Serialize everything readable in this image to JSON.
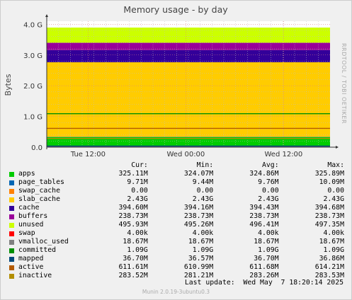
{
  "title": "Memory usage - by day",
  "side_label": "RRDTOOL / TOBI OETIKER",
  "footer": "Munin 2.0.19-3ubuntu0.3",
  "last_update": "Last update:  Wed May  7 18:20:14 2025",
  "legend_headers": [
    "Cur:",
    "Min:",
    "Avg:",
    "Max:"
  ],
  "chart_data": {
    "type": "area",
    "title": "Memory usage - by day",
    "ylabel": "Bytes",
    "ylim": [
      0,
      4.1
    ],
    "y_unit": "G",
    "yticks": [
      {
        "value": 0,
        "label": "0.0"
      },
      {
        "value": 1,
        "label": "1.0 G"
      },
      {
        "value": 2,
        "label": "2.0 G"
      },
      {
        "value": 3,
        "label": "3.0 G"
      },
      {
        "value": 4,
        "label": "4.0 G"
      }
    ],
    "xticks": [
      {
        "frac": 0.146,
        "label": "Tue 12:00"
      },
      {
        "frac": 0.491,
        "label": "Wed 00:00"
      },
      {
        "frac": 0.836,
        "label": "Wed 12:00"
      }
    ],
    "grid": true,
    "stacked_order": [
      "apps",
      "page_tables",
      "swap_cache",
      "slab_cache",
      "cache",
      "buffers",
      "unused",
      "swap"
    ],
    "line_order": [
      "vmalloc_used",
      "committed",
      "mapped",
      "active",
      "inactive"
    ],
    "series": [
      {
        "name": "apps",
        "color": "#00cc00",
        "gb": 0.3251,
        "cur": "325.11M",
        "min": "324.07M",
        "avg": "324.86M",
        "max": "325.89M"
      },
      {
        "name": "page_tables",
        "color": "#0066b3",
        "gb": 0.0097,
        "cur": "9.71M",
        "min": "9.44M",
        "avg": "9.76M",
        "max": "10.09M"
      },
      {
        "name": "swap_cache",
        "color": "#ff8000",
        "gb": 0.0,
        "cur": "0.00",
        "min": "0.00",
        "avg": "0.00",
        "max": "0.00"
      },
      {
        "name": "slab_cache",
        "color": "#ffcc00",
        "gb": 2.43,
        "cur": "2.43G",
        "min": "2.43G",
        "avg": "2.43G",
        "max": "2.43G"
      },
      {
        "name": "cache",
        "color": "#330099",
        "gb": 0.3946,
        "cur": "394.60M",
        "min": "394.16M",
        "avg": "394.43M",
        "max": "394.68M"
      },
      {
        "name": "buffers",
        "color": "#990099",
        "gb": 0.2387,
        "cur": "238.73M",
        "min": "238.73M",
        "avg": "238.73M",
        "max": "238.73M"
      },
      {
        "name": "unused",
        "color": "#ccff00",
        "gb": 0.4959,
        "cur": "495.93M",
        "min": "495.26M",
        "avg": "496.41M",
        "max": "497.35M"
      },
      {
        "name": "swap",
        "color": "#ff0000",
        "gb": 4e-06,
        "cur": "4.00k",
        "min": "4.00k",
        "avg": "4.00k",
        "max": "4.00k"
      },
      {
        "name": "vmalloc_used",
        "color": "#808080",
        "gb": 0.0187,
        "cur": "18.67M",
        "min": "18.67M",
        "avg": "18.67M",
        "max": "18.67M"
      },
      {
        "name": "committed",
        "color": "#008f00",
        "gb": 1.09,
        "cur": "1.09G",
        "min": "1.09G",
        "avg": "1.09G",
        "max": "1.09G"
      },
      {
        "name": "mapped",
        "color": "#00487d",
        "gb": 0.0367,
        "cur": "36.70M",
        "min": "36.57M",
        "avg": "36.70M",
        "max": "36.86M"
      },
      {
        "name": "active",
        "color": "#b35a00",
        "gb": 0.6116,
        "cur": "611.61M",
        "min": "610.99M",
        "avg": "611.68M",
        "max": "614.21M"
      },
      {
        "name": "inactive",
        "color": "#b38f00",
        "gb": 0.2835,
        "cur": "283.52M",
        "min": "281.21M",
        "avg": "283.26M",
        "max": "283.53M"
      }
    ]
  }
}
